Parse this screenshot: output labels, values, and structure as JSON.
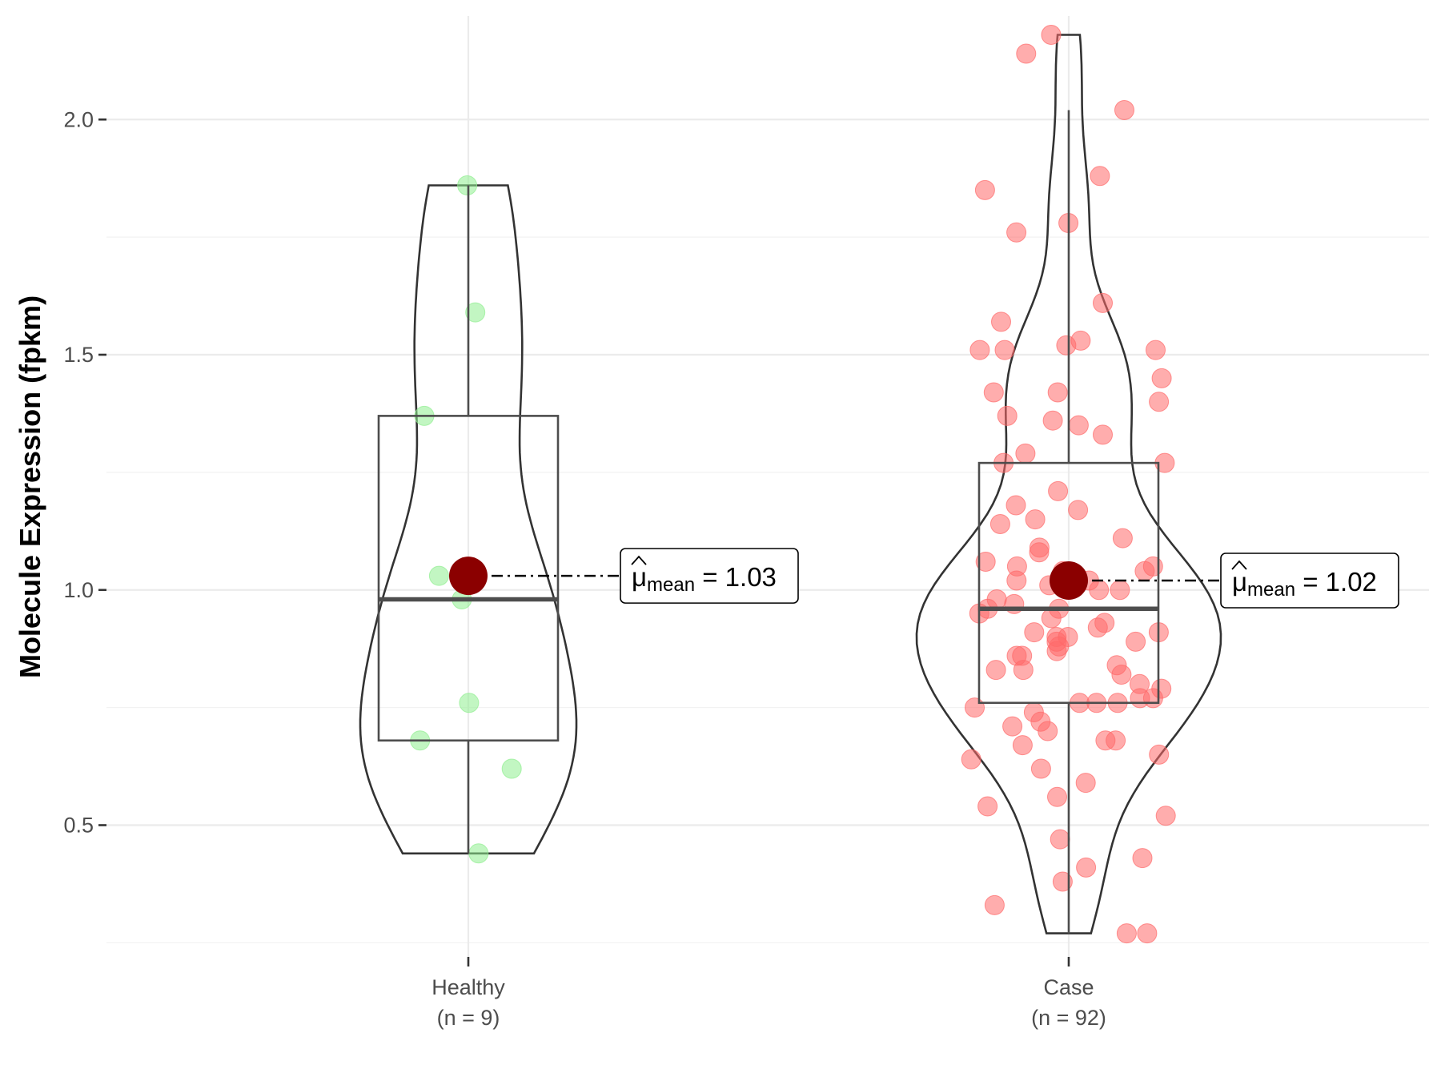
{
  "chart_data": {
    "type": "violin",
    "ylabel": "Molecule Expression (fpkm)",
    "ylim": [
      0.22,
      2.22
    ],
    "y_ticks": [
      "0.5",
      "1.0",
      "1.5",
      "2.0"
    ],
    "y_tick_values": [
      0.5,
      1.0,
      1.5,
      2.0
    ],
    "y_minor_values": [
      0.25,
      0.75,
      1.25,
      1.75,
      2.25
    ],
    "grid": true,
    "groups": [
      {
        "name": "Healthy",
        "n_label": "(n = 9)",
        "color": "#90ee90",
        "box": {
          "min": 0.44,
          "q1": 0.68,
          "median": 0.98,
          "q3": 1.37,
          "max": 1.86
        },
        "mean": 1.03,
        "mean_label": "1.03",
        "points": [
          1.86,
          1.59,
          1.37,
          1.03,
          0.98,
          0.76,
          0.68,
          0.62,
          0.44
        ]
      },
      {
        "name": "Case",
        "n_label": "(n = 92)",
        "color": "#ff6a6a",
        "box": {
          "min": 0.27,
          "q1": 0.76,
          "median": 0.96,
          "q3": 1.27,
          "max": 2.02
        },
        "mean": 1.02,
        "mean_label": "1.02",
        "points": [
          2.18,
          2.14,
          2.02,
          1.88,
          1.85,
          1.78,
          1.76,
          1.61,
          1.57,
          1.53,
          1.52,
          1.51,
          1.51,
          1.51,
          1.45,
          1.42,
          1.42,
          1.4,
          1.37,
          1.36,
          1.35,
          1.33,
          1.29,
          1.27,
          1.27,
          1.21,
          1.18,
          1.17,
          1.15,
          1.14,
          1.11,
          1.09,
          1.08,
          1.06,
          1.05,
          1.05,
          1.04,
          1.04,
          1.02,
          1.02,
          1.01,
          1.0,
          1.0,
          0.98,
          0.97,
          0.96,
          0.96,
          0.95,
          0.94,
          0.93,
          0.92,
          0.91,
          0.91,
          0.9,
          0.9,
          0.89,
          0.89,
          0.88,
          0.87,
          0.86,
          0.86,
          0.84,
          0.83,
          0.83,
          0.82,
          0.8,
          0.79,
          0.77,
          0.77,
          0.76,
          0.76,
          0.76,
          0.75,
          0.74,
          0.72,
          0.71,
          0.7,
          0.68,
          0.68,
          0.67,
          0.65,
          0.64,
          0.62,
          0.59,
          0.56,
          0.54,
          0.52,
          0.47,
          0.43,
          0.41,
          0.38,
          0.33
        ],
        "extra_points": [
          0.27,
          0.27
        ]
      }
    ]
  }
}
